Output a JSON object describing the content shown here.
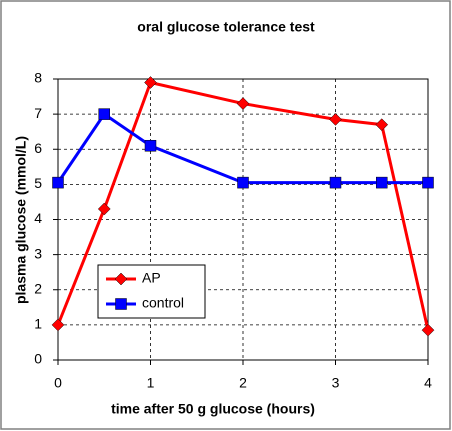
{
  "chart_data": {
    "type": "line",
    "title": "oral glucose tolerance test",
    "xlabel": "time after 50 g glucose (hours)",
    "ylabel": "plasma glucose (mmol/L)",
    "x": [
      0,
      0.5,
      1,
      2,
      3,
      3.5,
      4
    ],
    "series": [
      {
        "name": "AP",
        "color": "#ff0000",
        "marker": "diamond",
        "values": [
          1,
          4.3,
          7.9,
          7.3,
          6.85,
          6.7,
          0.85
        ]
      },
      {
        "name": "control",
        "color": "#0000ff",
        "marker": "square",
        "values": [
          5.05,
          7.0,
          6.1,
          5.05,
          5.05,
          5.05,
          5.05
        ]
      }
    ],
    "xlim": [
      0,
      4
    ],
    "xticks": [
      0,
      1,
      2,
      3,
      4
    ],
    "ylim": [
      0,
      8
    ],
    "yticks": [
      0,
      1,
      2,
      3,
      4,
      5,
      6,
      7,
      8
    ],
    "grid": true,
    "legend": "lower left"
  }
}
